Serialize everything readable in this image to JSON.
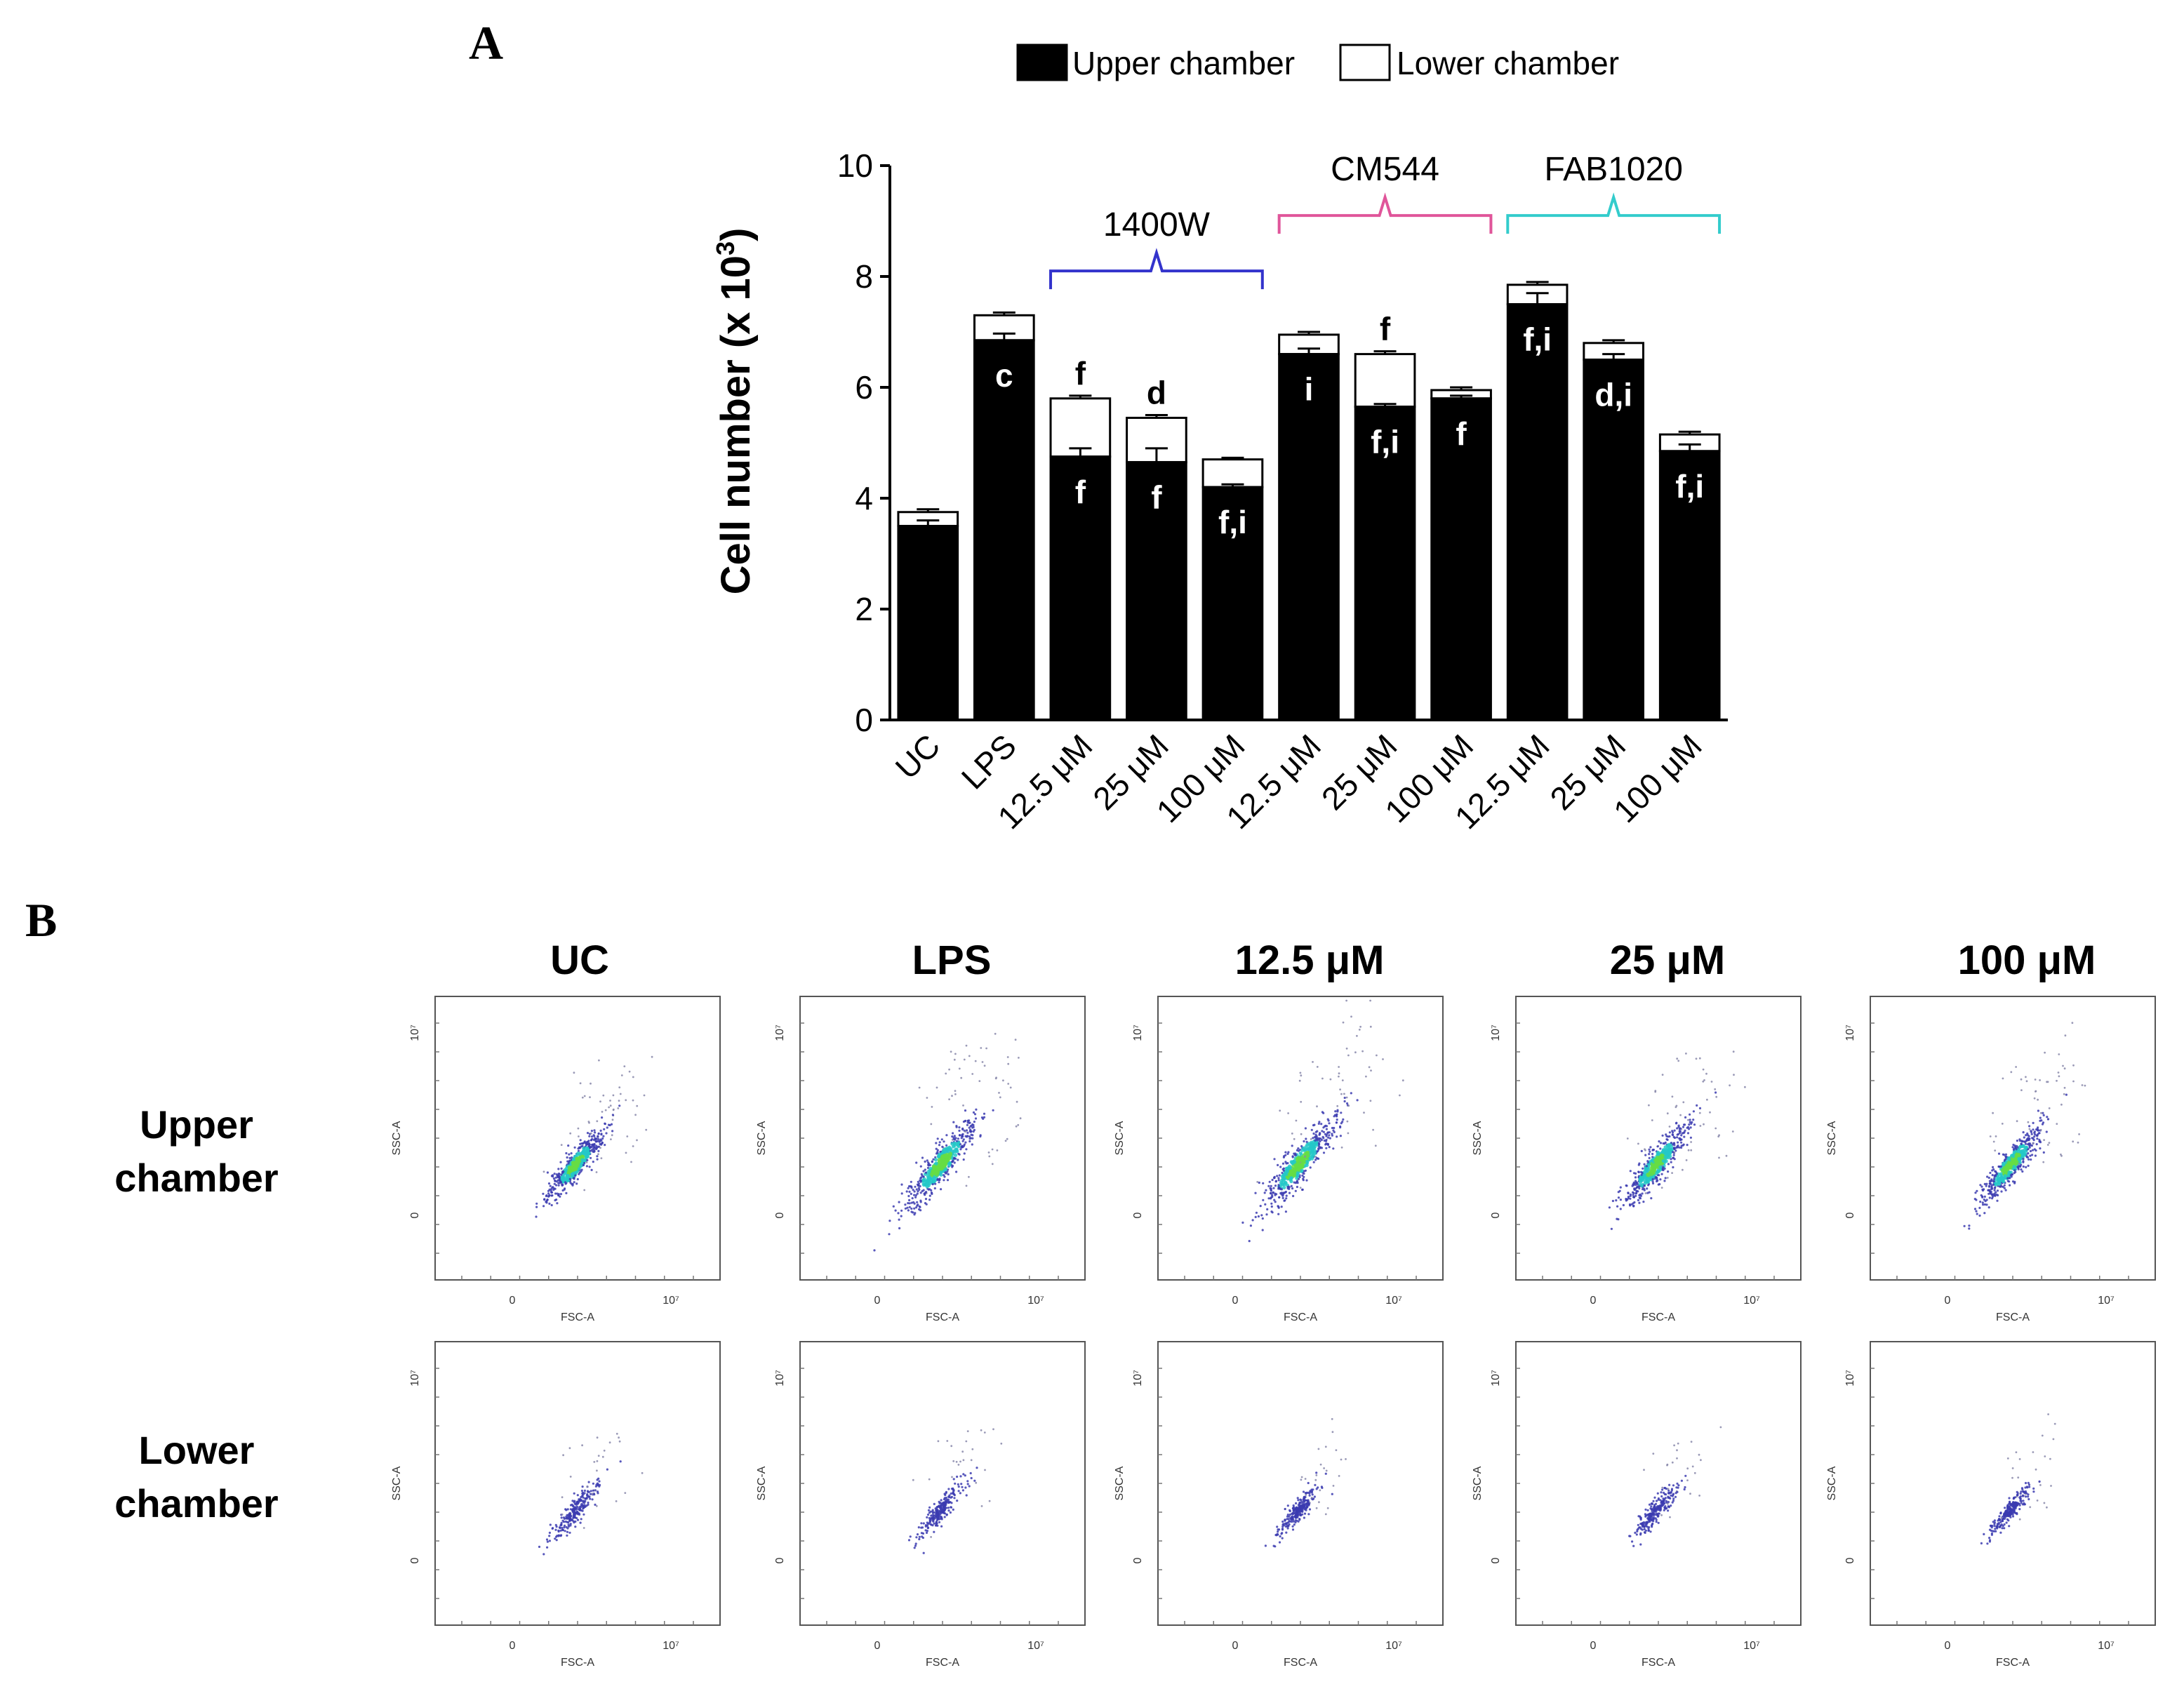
{
  "panel_labels": {
    "a": "A",
    "b": "B"
  },
  "colors": {
    "upper": "#000000",
    "lower": "#ffffff",
    "bracket_1400W": "#3333cc",
    "bracket_CM544": "#e0559a",
    "bracket_FAB1020": "#33cccc",
    "density_low": "#3b3bb0",
    "density_mid": "#25c8c8",
    "density_high": "#66dd44"
  },
  "chart_data": [
    {
      "type": "bar",
      "stacked": true,
      "ylabel_main": "Cell number (x 10",
      "ylabel_exp": "3",
      "ylabel_close": ")",
      "ylim": [
        0,
        10
      ],
      "yticks": [
        "0",
        "2",
        "4",
        "6",
        "8",
        "10"
      ],
      "legend_position": "top",
      "categories": [
        "UC",
        "LPS",
        "12.5 μM",
        "25 μM",
        "100 μM",
        "12.5 μM",
        "25 μM",
        "100 μM",
        "12.5 μM",
        "25 μM",
        "100 μM"
      ],
      "series": [
        {
          "name": "Upper chamber",
          "values": [
            3.5,
            6.85,
            4.75,
            4.65,
            4.2,
            6.6,
            5.65,
            5.8,
            7.5,
            6.5,
            4.85
          ],
          "errors": [
            0.1,
            0.12,
            0.15,
            0.25,
            0.05,
            0.1,
            0.05,
            0.05,
            0.2,
            0.1,
            0.12
          ]
        },
        {
          "name": "Lower chamber",
          "values": [
            0.25,
            0.45,
            1.05,
            0.8,
            0.5,
            0.35,
            0.95,
            0.15,
            0.35,
            0.3,
            0.3
          ],
          "errors": [
            0.05,
            0.05,
            0.05,
            0.05,
            0.03,
            0.05,
            0.05,
            0.05,
            0.05,
            0.05,
            0.05
          ]
        }
      ],
      "annotations_upper": [
        "",
        "c",
        "f",
        "f",
        "f,i",
        "i",
        "f,i",
        "f",
        "f,i",
        "d,i",
        "f,i"
      ],
      "annotations_top": [
        "",
        "",
        "f",
        "d",
        "",
        "",
        "f",
        "",
        "",
        "",
        ""
      ],
      "groups": [
        {
          "label": "1400W",
          "start": 2,
          "end": 4,
          "color_key": "bracket_1400W",
          "level": 8.1
        },
        {
          "label": "CM544",
          "start": 5,
          "end": 7,
          "color_key": "bracket_CM544",
          "level": 9.1
        },
        {
          "label": "FAB1020",
          "start": 8,
          "end": 10,
          "color_key": "bracket_FAB1020",
          "level": 9.1
        }
      ]
    },
    {
      "type": "scatter",
      "description_free": true,
      "columns": [
        "UC",
        "LPS",
        "12.5 μM",
        "25 μM",
        "100 μM"
      ],
      "rows": [
        "Upper chamber",
        "Lower chamber"
      ],
      "row_lines": [
        [
          "Upper",
          "chamber"
        ],
        [
          "Lower",
          "chamber"
        ]
      ],
      "x_axis_label": "FSC-A",
      "y_axis_label": "SSC-A",
      "axis_tick_zero": "0",
      "axis_tick_max": "10⁷",
      "spread": {
        "upper": [
          0.9,
          1.15,
          1.2,
          1.05,
          1.0
        ],
        "lower": [
          0.8,
          0.75,
          0.7,
          0.7,
          0.65
        ]
      }
    }
  ]
}
